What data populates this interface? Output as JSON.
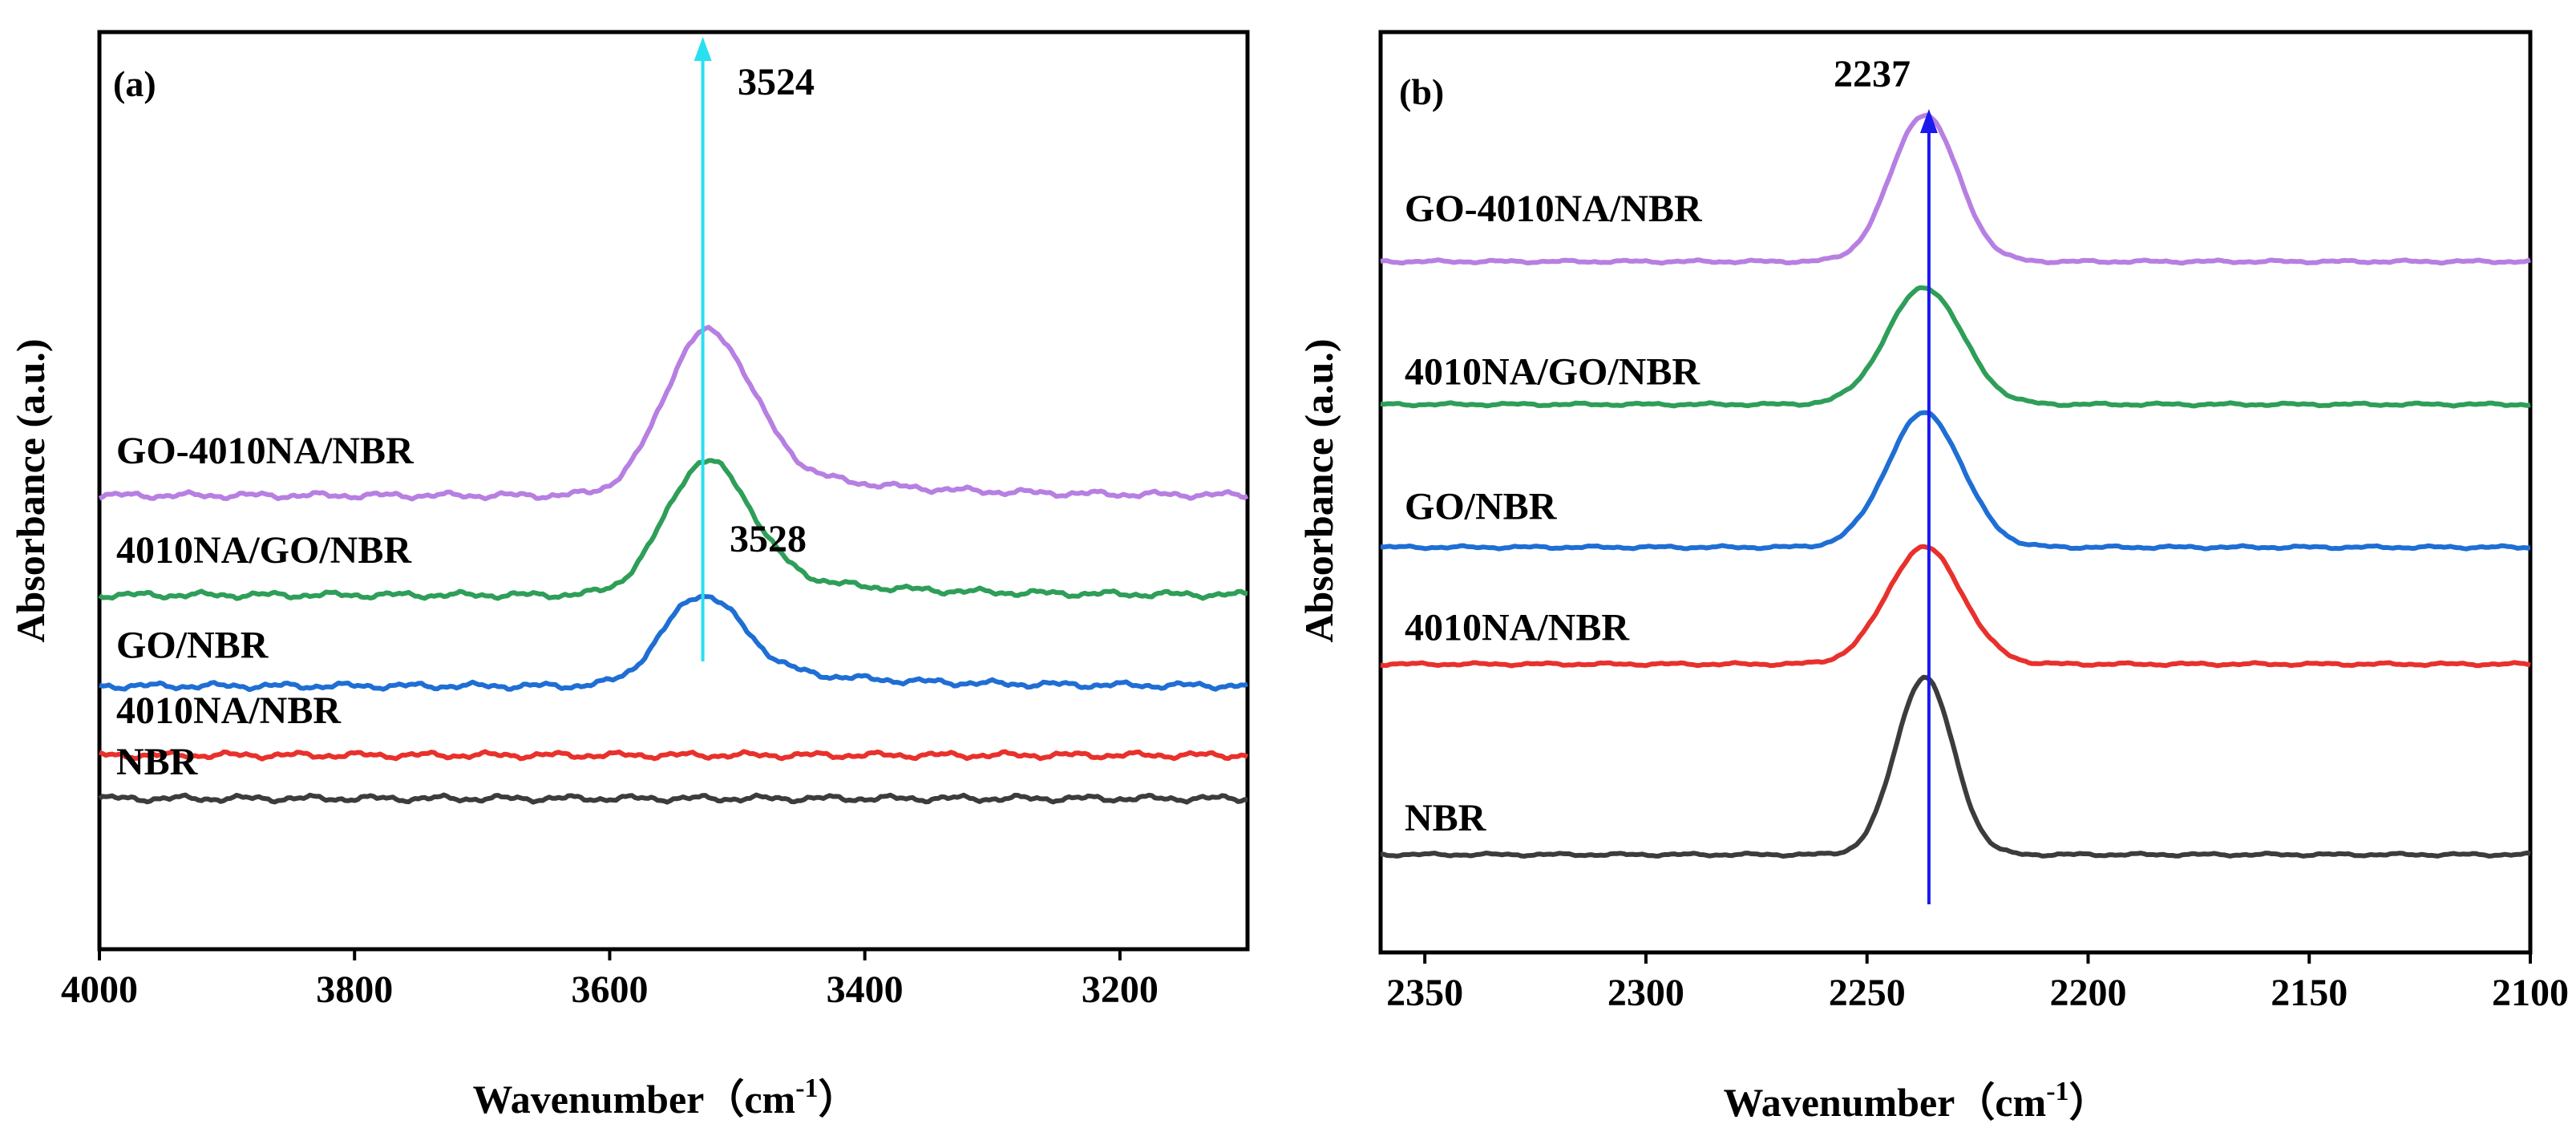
{
  "chart_data": [
    {
      "panel": "(a)",
      "type": "line",
      "xlabel": "Wavenumber",
      "xlabel_unit": "cm",
      "xlabel_exp": "-1",
      "xlabel_open": "（",
      "xlabel_close": "）",
      "ylabel": "Absorbance (a.u.)",
      "xlim": [
        4000,
        3100
      ],
      "x_ticks": [
        "4000",
        "3800",
        "3600",
        "3400",
        "3200"
      ],
      "x_tick_values": [
        4000,
        3800,
        3600,
        3400,
        3200
      ],
      "grid": false,
      "series": [
        {
          "name": "NBR",
          "color": "#3c3c3c",
          "baseline": 0.5,
          "peak_center": 3524,
          "peak_height": 0,
          "peak_width": 30,
          "tail": 0
        },
        {
          "name": "4010NA/NBR",
          "color": "#e8312c",
          "baseline": 1.0,
          "peak_center": 3524,
          "peak_height": 0,
          "peak_width": 30,
          "tail": 0
        },
        {
          "name": "GO/NBR",
          "color": "#1f6ed4",
          "baseline": 1.8,
          "peak_center": 3528,
          "peak_height": 1.05,
          "peak_width": 30,
          "tail": 0.35
        },
        {
          "name": "4010NA/GO/NBR",
          "color": "#2e9e58",
          "baseline": 2.85,
          "peak_center": 3524,
          "peak_height": 1.55,
          "peak_width": 32,
          "tail": 0.4
        },
        {
          "name": "GO-4010NA/NBR",
          "color": "#b77fe2",
          "baseline": 4.0,
          "peak_center": 3524,
          "peak_height": 1.9,
          "peak_width": 33,
          "tail": 0.55
        }
      ],
      "annotations": [
        {
          "text": "3524",
          "x": 3524
        },
        {
          "text": "3528",
          "x": 3528
        }
      ],
      "arrow": {
        "x": 3527,
        "color": "#28e0f0"
      }
    },
    {
      "panel": "(b)",
      "type": "line",
      "xlabel": "Wavenumber",
      "xlabel_unit": "cm",
      "xlabel_exp": "-1",
      "xlabel_open": "（",
      "xlabel_close": "）",
      "ylabel": "Absorbance (a.u.)",
      "xlim": [
        2360,
        2100
      ],
      "x_ticks": [
        "2350",
        "2300",
        "2250",
        "2200",
        "2150",
        "2100"
      ],
      "x_tick_values": [
        2350,
        2300,
        2250,
        2200,
        2150,
        2100
      ],
      "grid": false,
      "series": [
        {
          "name": "NBR",
          "color": "#3c3c3c",
          "baseline": 0.0,
          "peak_center": 2237,
          "peak_height": 2.05,
          "peak_width": 6.5
        },
        {
          "name": "4010NA/NBR",
          "color": "#e8312c",
          "baseline": 2.2,
          "peak_center": 2237,
          "peak_height": 1.35,
          "peak_width": 8.5
        },
        {
          "name": "GO/NBR",
          "color": "#1f6ed4",
          "baseline": 3.55,
          "peak_center": 2237,
          "peak_height": 1.55,
          "peak_width": 8.5
        },
        {
          "name": "4010NA/GO/NBR",
          "color": "#2e9e58",
          "baseline": 5.2,
          "peak_center": 2237,
          "peak_height": 1.35,
          "peak_width": 8.5
        },
        {
          "name": "GO-4010NA/NBR",
          "color": "#b77fe2",
          "baseline": 6.85,
          "peak_center": 2237,
          "peak_height": 1.7,
          "peak_width": 7.5
        }
      ],
      "annotations": [
        {
          "text": "2237",
          "x": 2237
        }
      ],
      "arrow": {
        "x": 2236,
        "color": "#1a1aee"
      }
    }
  ]
}
